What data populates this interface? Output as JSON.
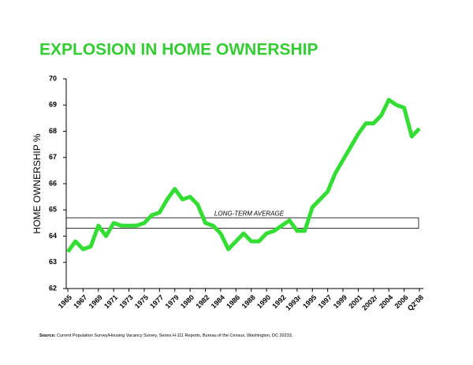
{
  "chart_data": {
    "type": "line",
    "title": "EXPLOSION IN HOME OWNERSHIP",
    "y_label": "HOME OWNERSHIP %",
    "annotation": "LONG-TERM AVERAGE",
    "average_band": [
      64.3,
      64.7
    ],
    "source_label": "Source:",
    "source": "Current Population Survey/Housing Vacancy Survey, Series H-111 Reports, Bureau of the Census, Washington, DC 20233.",
    "color": "#33dd33",
    "categories": [
      "1965",
      null,
      "1967",
      null,
      "1969",
      null,
      "1971",
      null,
      "1973",
      null,
      "1975",
      null,
      "1977",
      null,
      "1979",
      null,
      "1980",
      null,
      "1982",
      null,
      "1984",
      null,
      "1986",
      null,
      "1988",
      null,
      "1990",
      null,
      "1992",
      null,
      "1993r",
      null,
      "1995",
      null,
      "1997",
      null,
      "1999",
      null,
      "2001",
      null,
      "2002r",
      null,
      "2004",
      null,
      "2006",
      null,
      "Q2'08"
    ],
    "values": [
      63.4,
      63.8,
      63.5,
      63.6,
      64.4,
      64.0,
      64.5,
      64.4,
      64.4,
      64.4,
      64.5,
      64.8,
      64.9,
      65.4,
      65.8,
      65.4,
      65.5,
      65.2,
      64.5,
      64.4,
      64.1,
      63.5,
      63.8,
      64.1,
      63.8,
      63.8,
      64.1,
      64.2,
      64.4,
      64.6,
      64.2,
      64.2,
      65.1,
      65.4,
      65.7,
      66.4,
      66.9,
      67.4,
      67.9,
      68.3,
      68.3,
      68.6,
      69.2,
      69.0,
      68.9,
      67.8,
      68.1
    ],
    "ylim": [
      62,
      70
    ],
    "yticks": [
      62,
      63,
      64,
      65,
      66,
      67,
      68,
      69,
      70
    ]
  }
}
